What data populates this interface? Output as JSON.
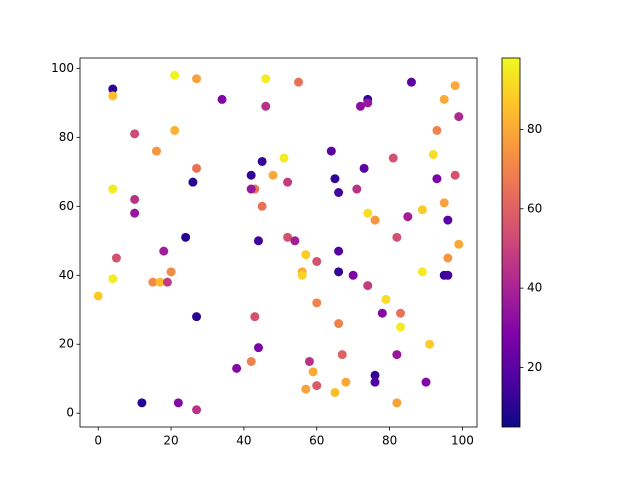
{
  "chart_data": {
    "type": "scatter",
    "colormap": "plasma",
    "x": [
      4,
      4,
      4,
      5,
      4,
      0,
      10,
      10,
      10,
      16,
      21,
      21,
      27,
      27,
      26,
      24,
      18,
      20,
      15,
      17,
      19,
      27,
      12,
      22,
      27,
      34,
      46,
      46,
      45,
      42,
      43,
      42,
      45,
      44,
      43,
      42,
      44,
      38,
      55,
      48,
      51,
      52,
      52,
      54,
      57,
      56,
      56,
      60,
      60,
      57,
      59,
      58,
      60,
      64,
      65,
      66,
      66,
      66,
      66,
      67,
      68,
      65,
      70,
      71,
      72,
      73,
      74,
      74,
      74,
      76,
      74,
      76,
      76,
      78,
      79,
      81,
      82,
      83,
      83,
      82,
      82,
      86,
      85,
      89,
      89,
      90,
      92,
      93,
      93,
      95,
      95,
      96,
      96,
      95,
      96,
      98,
      99,
      98,
      99,
      91
    ],
    "y": [
      94,
      92,
      65,
      45,
      39,
      34,
      81,
      62,
      58,
      76,
      98,
      82,
      97,
      71,
      67,
      51,
      47,
      41,
      38,
      38,
      38,
      28,
      3,
      3,
      1,
      91,
      97,
      89,
      73,
      69,
      65,
      65,
      60,
      50,
      28,
      15,
      19,
      13,
      96,
      69,
      74,
      67,
      51,
      50,
      46,
      41,
      40,
      44,
      32,
      7,
      12,
      15,
      8,
      76,
      68,
      64,
      47,
      41,
      26,
      17,
      9,
      6,
      40,
      65,
      89,
      71,
      91,
      90,
      58,
      56,
      37,
      11,
      9,
      29,
      33,
      74,
      51,
      29,
      25,
      17,
      3,
      96,
      57,
      59,
      41,
      9,
      75,
      82,
      68,
      91,
      61,
      56,
      45,
      40,
      40,
      95,
      86,
      69,
      49,
      20
    ],
    "c": [
      10,
      85,
      95,
      55,
      95,
      88,
      52,
      45,
      35,
      75,
      97,
      82,
      78,
      65,
      10,
      10,
      38,
      72,
      72,
      85,
      48,
      10,
      10,
      30,
      45,
      30,
      95,
      45,
      12,
      12,
      65,
      35,
      65,
      15,
      55,
      70,
      28,
      30,
      65,
      80,
      95,
      48,
      55,
      38,
      88,
      80,
      90,
      55,
      70,
      78,
      80,
      45,
      58,
      20,
      12,
      15,
      18,
      12,
      70,
      60,
      80,
      85,
      28,
      45,
      32,
      20,
      12,
      35,
      92,
      75,
      48,
      12,
      18,
      30,
      92,
      55,
      55,
      65,
      95,
      35,
      78,
      20,
      38,
      88,
      95,
      30,
      92,
      70,
      28,
      80,
      78,
      20,
      75,
      12,
      15,
      80,
      42,
      55,
      80,
      88
    ],
    "xlim": [
      -5,
      104
    ],
    "ylim": [
      -4,
      103
    ],
    "xticks": [
      0,
      20,
      40,
      60,
      80,
      100
    ],
    "yticks": [
      0,
      20,
      40,
      60,
      80,
      100
    ],
    "clim": [
      5,
      98
    ],
    "cticks": [
      20,
      40,
      60,
      80
    ]
  }
}
